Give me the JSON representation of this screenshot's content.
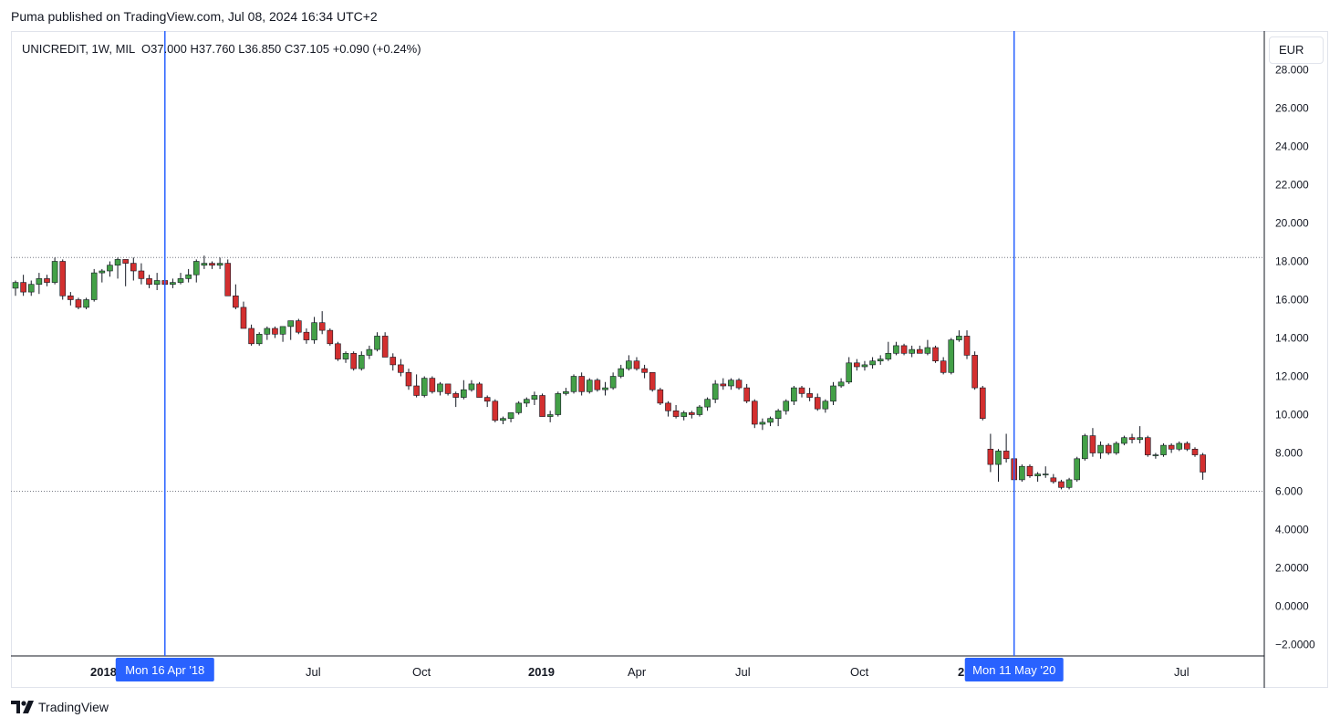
{
  "header": {
    "publish_line": "Puma published on TradingView.com, Jul 08, 2024 16:34 UTC+2"
  },
  "legend": {
    "symbol": "UNICREDIT, 1W, MIL",
    "open": "O37.000",
    "high": "H37.760",
    "low": "L36.850",
    "close": "C37.105",
    "change": "+0.090 (+0.24%)"
  },
  "currency": "EUR",
  "footer": {
    "brand": "TradingView"
  },
  "colors": {
    "up": "#43a047",
    "down": "#d32f2f",
    "wick": "#131722",
    "marker_line": "#2962ff",
    "marker_label_bg": "#2962ff"
  },
  "chart_data": {
    "type": "candlestick",
    "interval": "weekly",
    "y_axis_labels": [
      "28.000",
      "26.000",
      "24.000",
      "22.000",
      "20.000",
      "18.000",
      "16.000",
      "14.000",
      "12.000",
      "10.000",
      "8.000",
      "6.000",
      "4.0000",
      "2.0000",
      "0.0000",
      "−2.0000"
    ],
    "x_axis_labels": [
      "2018",
      "Jul",
      "Oct",
      "2019",
      "Apr",
      "Jul",
      "Oct",
      "2020",
      "Jul"
    ],
    "x_axis_bold": [
      "2018",
      "2019",
      "2020"
    ],
    "ylim": [
      -2,
      29
    ],
    "horizontal_levels": [
      18.2,
      6.0
    ],
    "vertical_markers": [
      {
        "label": "Mon 16 Apr '18",
        "date": "2018-04-16"
      },
      {
        "label": "Mon 11 May '20",
        "date": "2020-05-11"
      }
    ],
    "x_start": "2017-12-04",
    "grid": false,
    "legend_position": "top-left",
    "candles": [
      [
        16.6,
        17.0,
        16.2,
        16.9
      ],
      [
        16.9,
        17.3,
        16.2,
        16.4
      ],
      [
        16.4,
        17.0,
        16.2,
        16.8
      ],
      [
        16.8,
        17.4,
        16.3,
        17.1
      ],
      [
        17.1,
        17.3,
        16.7,
        16.9
      ],
      [
        16.9,
        18.2,
        16.8,
        18.0
      ],
      [
        18.0,
        18.1,
        16.0,
        16.2
      ],
      [
        16.2,
        16.4,
        15.7,
        16.0
      ],
      [
        16.0,
        16.1,
        15.5,
        15.6
      ],
      [
        15.6,
        16.1,
        15.5,
        16.0
      ],
      [
        16.0,
        17.6,
        15.9,
        17.4
      ],
      [
        17.4,
        17.6,
        16.9,
        17.5
      ],
      [
        17.5,
        18.0,
        17.2,
        17.8
      ],
      [
        17.8,
        18.2,
        17.1,
        18.1
      ],
      [
        18.1,
        18.1,
        16.7,
        17.9
      ],
      [
        17.9,
        18.2,
        17.0,
        17.5
      ],
      [
        17.5,
        17.9,
        16.8,
        17.1
      ],
      [
        17.1,
        17.3,
        16.6,
        16.8
      ],
      [
        16.8,
        17.4,
        16.5,
        17.0
      ],
      [
        17.0,
        17.3,
        16.7,
        16.8
      ],
      [
        16.8,
        17.1,
        16.6,
        16.9
      ],
      [
        16.9,
        17.4,
        16.8,
        17.1
      ],
      [
        17.1,
        17.6,
        16.9,
        17.3
      ],
      [
        17.3,
        18.1,
        16.9,
        18.0
      ],
      [
        17.8,
        18.3,
        17.6,
        17.9
      ],
      [
        17.9,
        18.0,
        17.6,
        17.8
      ],
      [
        17.8,
        18.2,
        17.6,
        17.9
      ],
      [
        17.9,
        18.1,
        16.2,
        16.2
      ],
      [
        16.2,
        16.8,
        15.5,
        15.6
      ],
      [
        15.6,
        15.9,
        14.5,
        14.5
      ],
      [
        14.5,
        14.7,
        13.6,
        13.7
      ],
      [
        13.7,
        14.3,
        13.6,
        14.2
      ],
      [
        14.2,
        14.6,
        13.9,
        14.5
      ],
      [
        14.5,
        14.6,
        14.0,
        14.2
      ],
      [
        14.2,
        14.6,
        13.8,
        14.6
      ],
      [
        14.6,
        14.9,
        13.9,
        14.9
      ],
      [
        14.9,
        15.0,
        14.2,
        14.3
      ],
      [
        14.3,
        14.5,
        13.7,
        13.9
      ],
      [
        13.9,
        15.1,
        13.7,
        14.8
      ],
      [
        14.8,
        15.4,
        14.2,
        14.4
      ],
      [
        14.4,
        14.5,
        13.6,
        13.7
      ],
      [
        13.7,
        13.8,
        12.8,
        12.9
      ],
      [
        12.9,
        13.3,
        12.7,
        13.2
      ],
      [
        13.2,
        13.3,
        12.3,
        12.4
      ],
      [
        12.4,
        13.3,
        12.3,
        13.1
      ],
      [
        13.1,
        13.6,
        12.9,
        13.4
      ],
      [
        13.4,
        14.3,
        13.3,
        14.1
      ],
      [
        14.1,
        14.3,
        13.0,
        13.0
      ],
      [
        13.0,
        13.2,
        12.3,
        12.6
      ],
      [
        12.6,
        12.9,
        12.0,
        12.2
      ],
      [
        12.2,
        12.4,
        11.3,
        11.5
      ],
      [
        11.5,
        12.1,
        10.9,
        11.0
      ],
      [
        11.0,
        12.0,
        10.9,
        11.9
      ],
      [
        11.9,
        12.0,
        11.1,
        11.2
      ],
      [
        11.2,
        11.7,
        11.0,
        11.6
      ],
      [
        11.6,
        11.6,
        11.0,
        11.1
      ],
      [
        11.1,
        11.2,
        10.4,
        10.9
      ],
      [
        10.9,
        11.8,
        10.8,
        11.3
      ],
      [
        11.3,
        11.8,
        11.2,
        11.6
      ],
      [
        11.6,
        11.7,
        10.9,
        10.9
      ],
      [
        10.9,
        11.0,
        10.4,
        10.7
      ],
      [
        10.7,
        10.8,
        9.6,
        9.7
      ],
      [
        9.7,
        9.9,
        9.5,
        9.8
      ],
      [
        9.8,
        10.1,
        9.6,
        10.1
      ],
      [
        10.1,
        10.7,
        10.0,
        10.6
      ],
      [
        10.6,
        10.9,
        10.4,
        10.8
      ],
      [
        10.8,
        11.2,
        10.5,
        11.0
      ],
      [
        11.0,
        11.1,
        9.9,
        9.9
      ],
      [
        9.9,
        10.2,
        9.6,
        10.0
      ],
      [
        10.0,
        11.2,
        9.9,
        11.1
      ],
      [
        11.1,
        11.4,
        11.0,
        11.2
      ],
      [
        11.2,
        12.1,
        11.1,
        12.0
      ],
      [
        12.0,
        12.2,
        11.0,
        11.2
      ],
      [
        11.2,
        11.9,
        11.1,
        11.8
      ],
      [
        11.8,
        11.9,
        11.2,
        11.3
      ],
      [
        11.3,
        11.7,
        11.0,
        11.4
      ],
      [
        11.4,
        12.2,
        11.3,
        12.0
      ],
      [
        12.0,
        12.6,
        11.9,
        12.4
      ],
      [
        12.4,
        13.1,
        12.3,
        12.8
      ],
      [
        12.8,
        13.0,
        12.3,
        12.4
      ],
      [
        12.4,
        12.6,
        11.9,
        12.2
      ],
      [
        12.2,
        12.2,
        11.2,
        11.3
      ],
      [
        11.3,
        11.4,
        10.5,
        10.6
      ],
      [
        10.6,
        10.7,
        9.9,
        10.2
      ],
      [
        10.2,
        10.5,
        9.8,
        9.9
      ],
      [
        9.9,
        10.2,
        9.7,
        10.1
      ],
      [
        10.1,
        10.2,
        9.8,
        10.0
      ],
      [
        10.0,
        10.5,
        9.9,
        10.4
      ],
      [
        10.4,
        10.9,
        10.2,
        10.8
      ],
      [
        10.8,
        11.8,
        10.6,
        11.6
      ],
      [
        11.6,
        11.9,
        11.3,
        11.5
      ],
      [
        11.5,
        11.9,
        11.3,
        11.8
      ],
      [
        11.8,
        11.9,
        11.3,
        11.4
      ],
      [
        11.4,
        11.6,
        10.6,
        10.7
      ],
      [
        10.7,
        10.8,
        9.3,
        9.5
      ],
      [
        9.5,
        9.8,
        9.2,
        9.6
      ],
      [
        9.6,
        9.9,
        9.4,
        9.8
      ],
      [
        9.8,
        10.3,
        9.4,
        10.2
      ],
      [
        10.2,
        10.8,
        10.0,
        10.7
      ],
      [
        10.7,
        11.5,
        10.5,
        11.4
      ],
      [
        11.4,
        11.5,
        10.9,
        11.1
      ],
      [
        11.1,
        11.4,
        10.7,
        10.9
      ],
      [
        10.9,
        11.1,
        10.2,
        10.3
      ],
      [
        10.3,
        10.8,
        10.1,
        10.7
      ],
      [
        10.7,
        11.7,
        10.5,
        11.5
      ],
      [
        11.5,
        11.9,
        11.4,
        11.7
      ],
      [
        11.7,
        13.0,
        11.6,
        12.7
      ],
      [
        12.7,
        12.9,
        12.3,
        12.5
      ],
      [
        12.5,
        12.8,
        12.3,
        12.6
      ],
      [
        12.6,
        13.0,
        12.4,
        12.8
      ],
      [
        12.8,
        13.1,
        12.6,
        12.9
      ],
      [
        12.9,
        13.8,
        12.8,
        13.2
      ],
      [
        13.2,
        13.8,
        13.1,
        13.6
      ],
      [
        13.6,
        13.7,
        13.1,
        13.2
      ],
      [
        13.2,
        13.6,
        13.0,
        13.4
      ],
      [
        13.4,
        13.6,
        13.2,
        13.2
      ],
      [
        13.2,
        13.9,
        13.1,
        13.5
      ],
      [
        13.5,
        13.6,
        12.7,
        12.8
      ],
      [
        12.8,
        13.0,
        12.1,
        12.2
      ],
      [
        12.2,
        14.0,
        12.1,
        13.9
      ],
      [
        13.9,
        14.4,
        13.8,
        14.1
      ],
      [
        14.1,
        14.4,
        12.9,
        13.1
      ],
      [
        13.1,
        13.3,
        11.3,
        11.4
      ],
      [
        11.4,
        11.5,
        9.7,
        9.8
      ],
      [
        8.2,
        9.0,
        7.0,
        7.4
      ],
      [
        7.4,
        8.2,
        6.5,
        8.1
      ],
      [
        8.1,
        9.0,
        7.5,
        7.7
      ],
      [
        7.7,
        7.8,
        6.5,
        6.6
      ],
      [
        6.6,
        7.4,
        6.5,
        7.3
      ],
      [
        7.3,
        7.4,
        6.7,
        6.8
      ],
      [
        6.8,
        7.0,
        6.5,
        6.9
      ],
      [
        6.9,
        7.3,
        6.7,
        6.9
      ],
      [
        6.7,
        6.9,
        6.4,
        6.5
      ],
      [
        6.5,
        6.6,
        6.1,
        6.2
      ],
      [
        6.2,
        6.7,
        6.1,
        6.6
      ],
      [
        6.6,
        7.8,
        6.5,
        7.7
      ],
      [
        7.7,
        9.0,
        7.6,
        8.9
      ],
      [
        8.9,
        9.3,
        7.8,
        8.0
      ],
      [
        8.0,
        8.6,
        7.7,
        8.4
      ],
      [
        8.4,
        8.5,
        7.9,
        8.0
      ],
      [
        8.0,
        8.6,
        7.9,
        8.5
      ],
      [
        8.5,
        8.9,
        8.4,
        8.8
      ],
      [
        8.8,
        9.0,
        8.5,
        8.7
      ],
      [
        8.7,
        9.4,
        8.5,
        8.8
      ],
      [
        8.8,
        8.9,
        7.8,
        7.9
      ],
      [
        7.9,
        8.0,
        7.7,
        7.9
      ],
      [
        7.9,
        8.5,
        7.8,
        8.4
      ],
      [
        8.4,
        8.5,
        8.0,
        8.2
      ],
      [
        8.2,
        8.6,
        8.1,
        8.5
      ],
      [
        8.5,
        8.6,
        8.1,
        8.2
      ],
      [
        8.2,
        8.3,
        7.8,
        7.9
      ],
      [
        7.9,
        8.0,
        6.6,
        7.0
      ]
    ]
  }
}
